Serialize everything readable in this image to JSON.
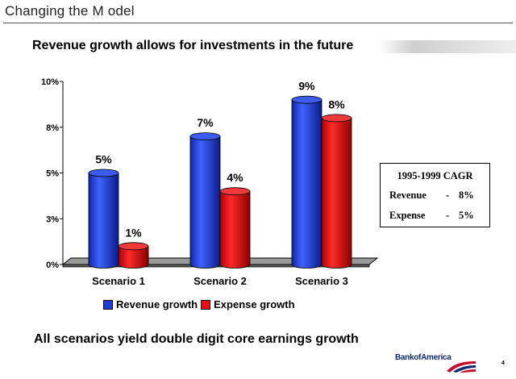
{
  "slide": {
    "title": "Changing the M odel",
    "headline": "Revenue growth allows for investments in the future",
    "footer": "All scenarios yield double digit core earnings growth",
    "page_number": "4",
    "logo_text": "BankofAmerica"
  },
  "cagr_box": {
    "title": "1995-1999  CAGR",
    "rows": [
      {
        "label": "Revenue",
        "dash": "-",
        "value": "8%"
      },
      {
        "label": "Expense",
        "dash": "-",
        "value": "5%"
      }
    ]
  },
  "chart_data": {
    "type": "bar",
    "style": "3d-cylinder",
    "categories": [
      "Scenario 1",
      "Scenario 2",
      "Scenario 3"
    ],
    "series": [
      {
        "name": "Revenue growth",
        "color": "#1a3de0",
        "values": [
          5,
          7,
          9
        ],
        "labels": [
          "5%",
          "7%",
          "9%"
        ]
      },
      {
        "name": "Expense growth",
        "color": "#e81010",
        "values": [
          1,
          4,
          8
        ],
        "labels": [
          "1%",
          "4%",
          "8%"
        ]
      }
    ],
    "y_ticks": [
      {
        "value": 0,
        "label": "0%"
      },
      {
        "value": 2.5,
        "label": "3%"
      },
      {
        "value": 5,
        "label": "5%"
      },
      {
        "value": 7.5,
        "label": "8%"
      },
      {
        "value": 10,
        "label": "10%"
      }
    ],
    "ylim": [
      0,
      10
    ],
    "grid": false,
    "legend_position": "bottom"
  }
}
